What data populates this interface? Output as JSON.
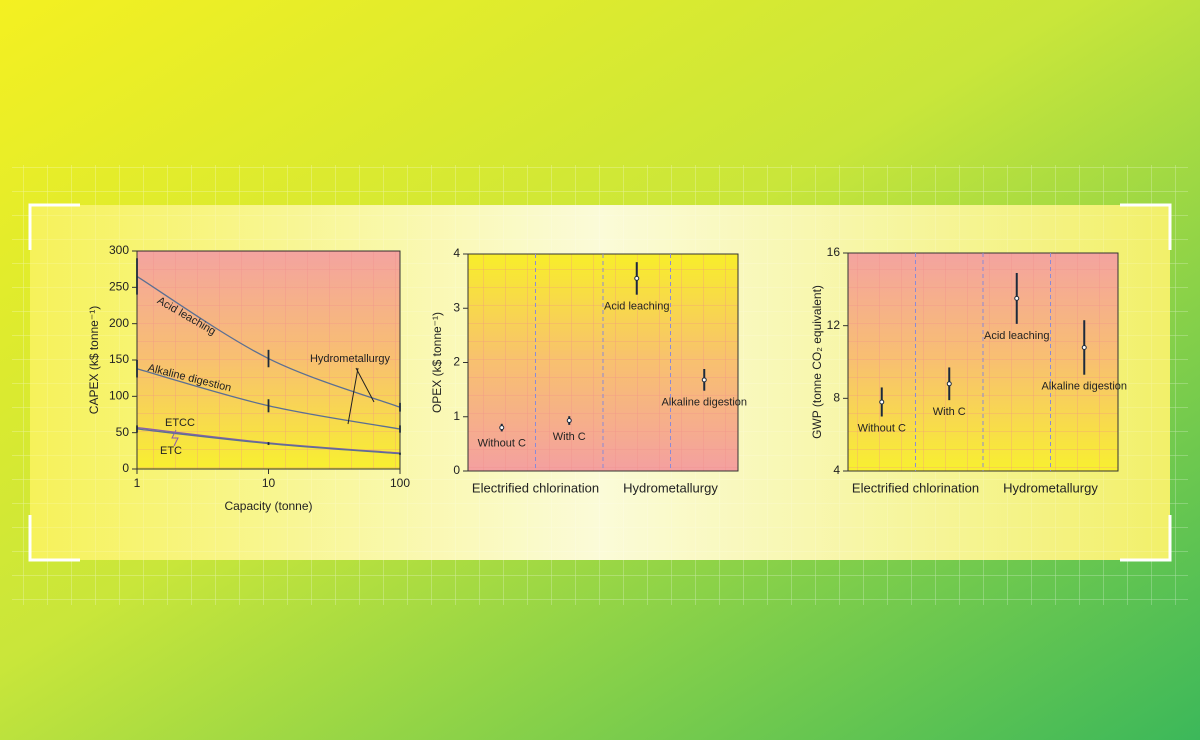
{
  "chart_data": [
    {
      "type": "line",
      "x": [
        1,
        10,
        100
      ],
      "xlim": [
        1,
        100
      ],
      "xticks": [
        1,
        10,
        100
      ],
      "xscale": "log",
      "ylim": [
        0,
        300
      ],
      "yticks": [
        0,
        50,
        100,
        150,
        200,
        250,
        300
      ],
      "xlabel": "Capacity (tonne)",
      "ylabel": "CAPEX (k$ tonne⁻¹)",
      "annotation": "Hydrometallurgy",
      "series": [
        {
          "name": "Acid leaching",
          "color": "#5b6f93",
          "values": [
            265,
            152,
            85
          ],
          "errors": [
            25,
            12,
            6
          ]
        },
        {
          "name": "Alkaline digestion",
          "color": "#5b6f93",
          "values": [
            138,
            87,
            55
          ],
          "errors": [
            12,
            9,
            5
          ]
        },
        {
          "name": "ETCC",
          "color": "#8a5fa8",
          "values": [
            57,
            36,
            22
          ]
        },
        {
          "name": "ETC",
          "color": "#5b6f93",
          "values": [
            55,
            35,
            21
          ],
          "errors": [
            5,
            2,
            1.5
          ]
        }
      ]
    },
    {
      "type": "errorbar",
      "ylim": [
        0,
        4
      ],
      "yticks": [
        0,
        1,
        2,
        3,
        4
      ],
      "ylabel": "OPEX (k$ tonne⁻¹)",
      "groups": [
        "Electrified chlorination",
        "Hydrometallurgy"
      ],
      "categories": [
        "Without C",
        "With C",
        "Acid leaching",
        "Alkaline digestion"
      ],
      "values": [
        0.8,
        0.93,
        3.55,
        1.68
      ],
      "errors": [
        0.07,
        0.08,
        0.3,
        0.2
      ],
      "color": "#1c2a3c"
    },
    {
      "type": "errorbar",
      "ylim": [
        4,
        16
      ],
      "yticks": [
        4,
        8,
        12,
        16
      ],
      "ylabel": "GWP (tonne CO₂ equivalent)",
      "groups": [
        "Electrified chlorination",
        "Hydrometallurgy"
      ],
      "categories": [
        "Without C",
        "With C",
        "Acid leaching",
        "Alkaline digestion"
      ],
      "values": [
        7.8,
        8.8,
        13.5,
        10.8
      ],
      "errors": [
        0.8,
        0.9,
        1.4,
        1.5
      ],
      "color": "#1c2a3c"
    }
  ]
}
